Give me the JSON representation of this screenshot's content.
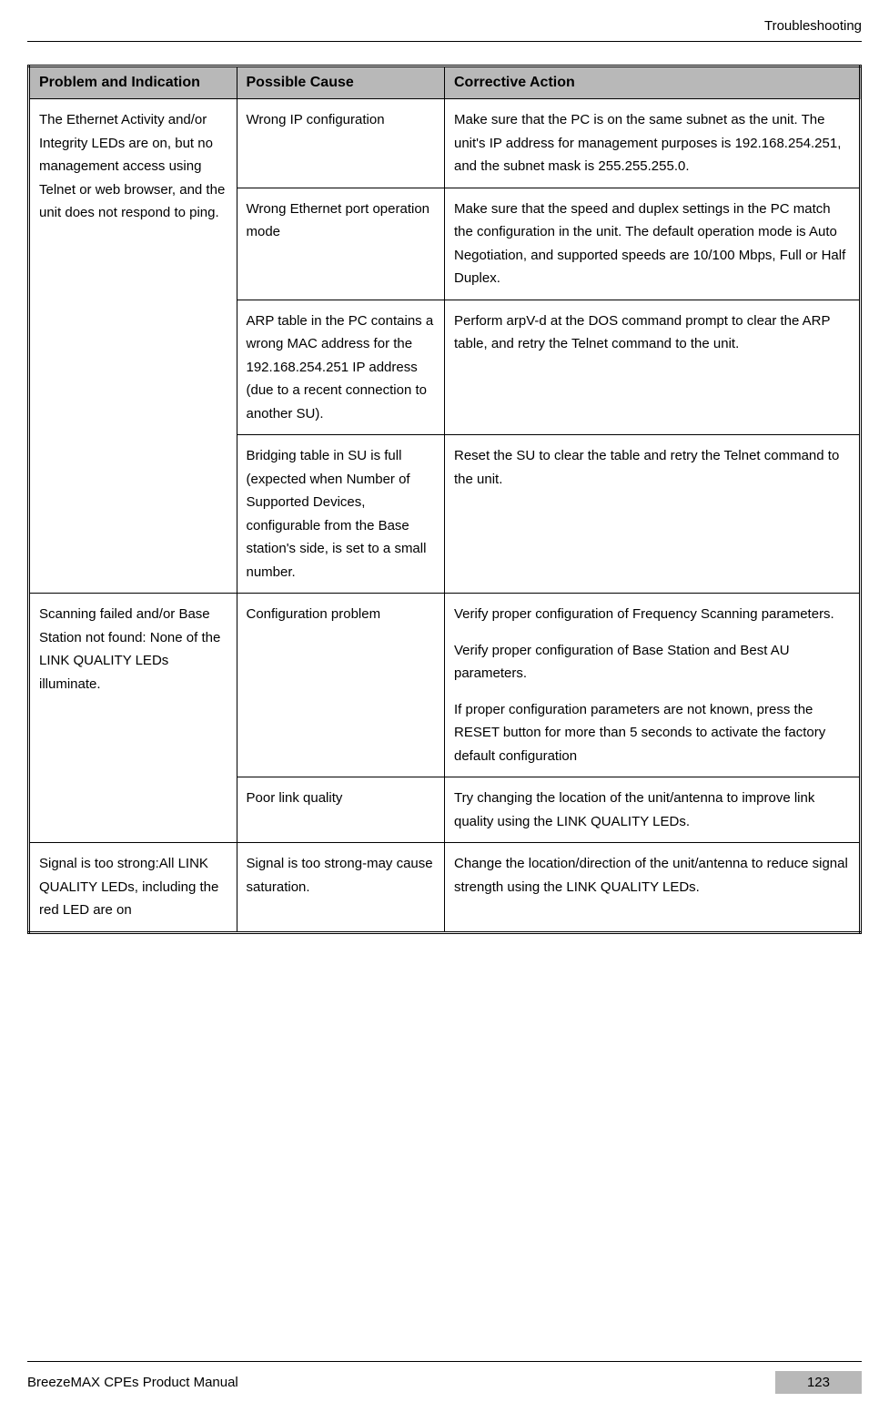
{
  "header": {
    "title": "Troubleshooting"
  },
  "table": {
    "headers": {
      "problem": "Problem and Indication",
      "cause": "Possible Cause",
      "action": "Corrective Action"
    },
    "header_bg_color": "#b8b8b8",
    "rows": [
      {
        "problem": "The Ethernet Activity and/or Integrity LEDs are on, but no management access using Telnet or web browser, and the unit does not respond to ping.",
        "problem_rowspan": 4,
        "cause": "Wrong IP configuration",
        "action": [
          "Make sure that the PC is on the same subnet as the unit. The unit's IP address for management purposes is 192.168.254.251, and the subnet mask is 255.255.255.0."
        ]
      },
      {
        "cause": "Wrong Ethernet port operation mode",
        "action": [
          "Make sure that the speed and duplex settings in the PC match the configuration in the unit. The default operation mode is Auto Negotiation, and supported speeds are 10/100 Mbps, Full or Half Duplex."
        ]
      },
      {
        "cause": "ARP table in the PC contains a wrong MAC address for the 192.168.254.251 IP address (due to a recent connection to another SU).",
        "action": [
          "Perform arpV-d at the DOS command prompt to clear the ARP table, and retry the Telnet command to the unit."
        ]
      },
      {
        "cause": "Bridging table in SU is full (expected when Number of Supported Devices, configurable from the Base station's side, is set to a small number.",
        "action": [
          "Reset the SU to clear the table and retry the Telnet command to the unit."
        ]
      },
      {
        "problem": "Scanning failed and/or Base Station not found: None of the LINK QUALITY LEDs illuminate.",
        "problem_rowspan": 2,
        "cause": "Configuration problem",
        "action": [
          "Verify proper configuration of Frequency Scanning parameters.",
          "Verify proper configuration of Base Station and Best AU parameters.",
          "If proper configuration parameters are not known, press the RESET button for more than 5 seconds to activate the factory default configuration"
        ]
      },
      {
        "cause": "Poor link quality",
        "action": [
          "Try changing the location of the unit/antenna to improve link quality using the LINK QUALITY LEDs."
        ]
      },
      {
        "problem": "Signal is too strong:All LINK QUALITY LEDs, including the red LED are on",
        "problem_rowspan": 1,
        "cause": "Signal is too strong-may cause saturation.",
        "action": [
          "Change the location/direction of the unit/antenna to reduce signal strength using the LINK QUALITY LEDs."
        ]
      }
    ]
  },
  "footer": {
    "manual_name": "BreezeMAX CPEs Product Manual",
    "page_number": "123",
    "page_number_bg_color": "#b8b8b8"
  }
}
